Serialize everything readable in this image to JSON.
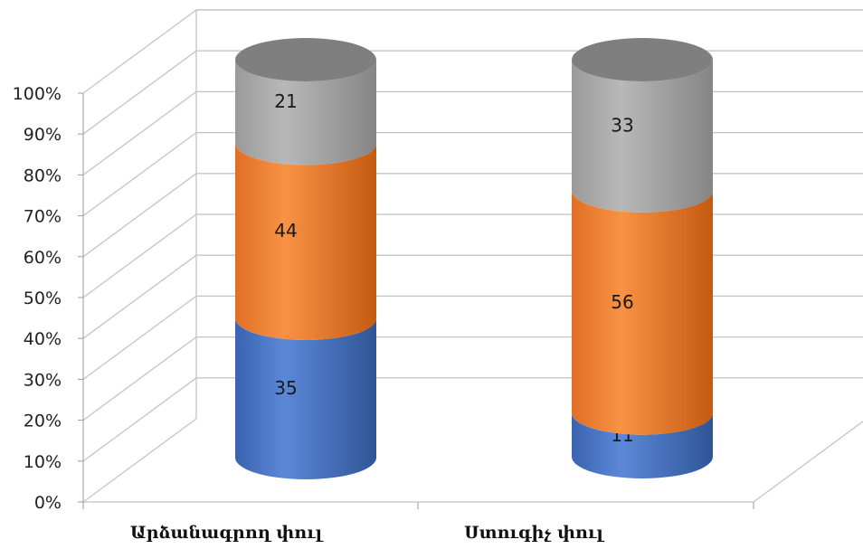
{
  "chart_data": {
    "type": "bar",
    "stacked": true,
    "percent_stacked": true,
    "style": "3d-cylinder",
    "categories": [
      "Արձանագրող փուլ",
      "Ստուգիչ փուլ"
    ],
    "series": [
      {
        "color": "#4472c4",
        "values": [
          35,
          11
        ]
      },
      {
        "color": "#ed7d31",
        "values": [
          44,
          56
        ]
      },
      {
        "color": "#a5a5a5",
        "values": [
          21,
          33
        ]
      }
    ],
    "y_ticks": [
      "0%",
      "10%",
      "20%",
      "30%",
      "40%",
      "50%",
      "60%",
      "70%",
      "80%",
      "90%",
      "100%"
    ],
    "ylim": [
      0,
      100
    ],
    "grid": true,
    "legend": "none"
  }
}
